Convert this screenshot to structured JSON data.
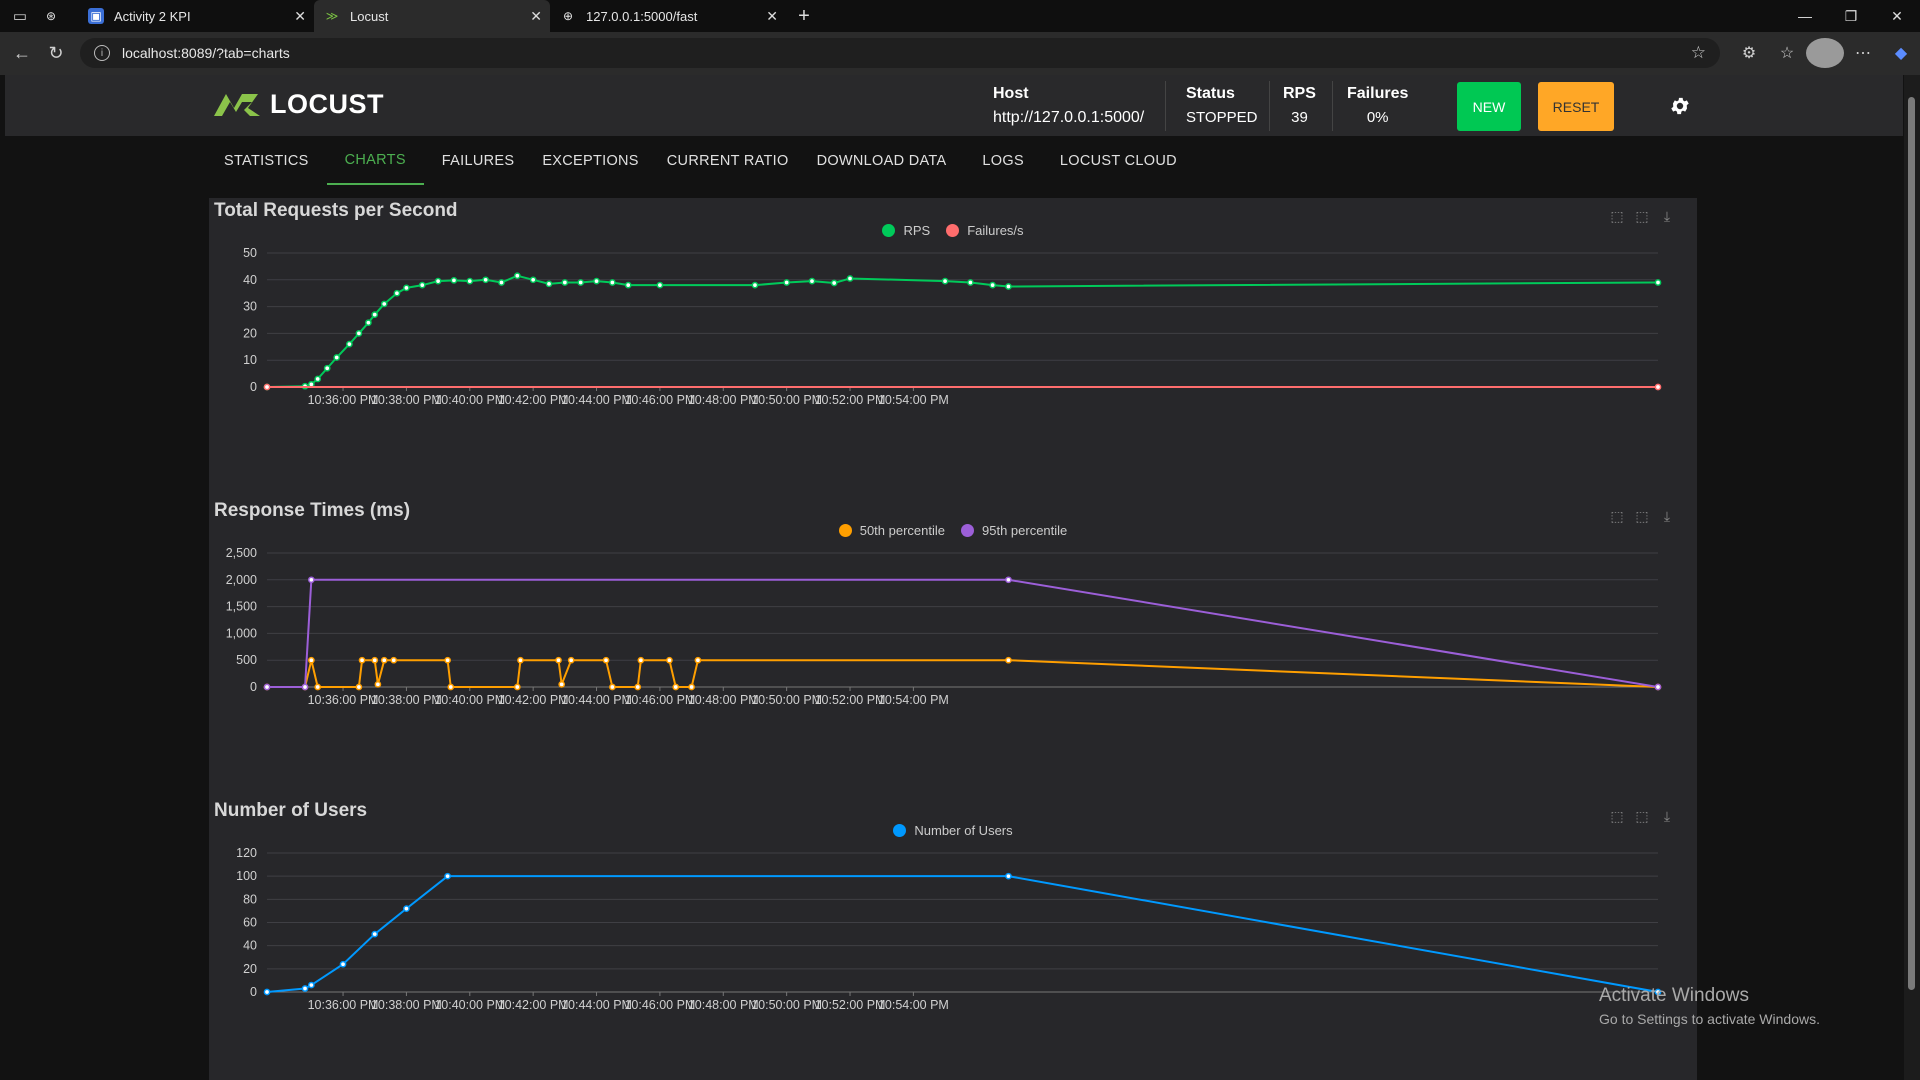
{
  "browser": {
    "tabs": [
      {
        "title": "",
        "icon": "copilot-icon"
      },
      {
        "title": "Activity 2 KPI",
        "icon": "doc-icon"
      },
      {
        "title": "Locust",
        "icon": "locust-icon"
      },
      {
        "title": "127.0.0.1:5000/fast",
        "icon": "globe-icon"
      }
    ],
    "url": "localhost:8089/?tab=charts"
  },
  "header": {
    "logo_text": "LOCUST",
    "host_label": "Host",
    "host_value": "http://127.0.0.1:5000/",
    "status_label": "Status",
    "status_value": "STOPPED",
    "rps_label": "RPS",
    "rps_value": "39",
    "failures_label": "Failures",
    "failures_value": "0%",
    "new_label": "NEW",
    "reset_label": "RESET"
  },
  "nav": {
    "tabs": [
      "STATISTICS",
      "CHARTS",
      "FAILURES",
      "EXCEPTIONS",
      "CURRENT RATIO",
      "DOWNLOAD DATA",
      "LOGS",
      "LOCUST CLOUD"
    ],
    "active": "CHARTS"
  },
  "time_labels": [
    "10:36:00 PM",
    "10:38:00 PM",
    "10:40:00 PM",
    "10:42:00 PM",
    "10:44:00 PM",
    "10:46:00 PM",
    "10:48:00 PM",
    "10:50:00 PM",
    "10:52:00 PM",
    "10:54:00 PM"
  ],
  "colors": {
    "rps": "#00ca5a",
    "failures": "#ff6d6d",
    "p50": "#ff9f00",
    "p95": "#9c5fd8",
    "users": "#0099ff",
    "accent": "#4caf50"
  },
  "chart_data": [
    {
      "type": "line",
      "title": "Total Requests per Second",
      "y_ticks": [
        "0",
        "10",
        "20",
        "30",
        "40",
        "50"
      ],
      "ylim": [
        0,
        50
      ],
      "series": [
        {
          "name": "RPS",
          "values": [
            [
              -2.4,
              0
            ],
            [
              -1.2,
              0.3
            ],
            [
              -1,
              1
            ],
            [
              -0.8,
              3
            ],
            [
              -0.5,
              7
            ],
            [
              -0.2,
              11
            ],
            [
              0.2,
              16
            ],
            [
              0.5,
              20
            ],
            [
              0.8,
              24
            ],
            [
              1,
              27
            ],
            [
              1.3,
              31
            ],
            [
              1.7,
              35
            ],
            [
              2,
              37
            ],
            [
              2.5,
              38
            ],
            [
              3,
              39.5
            ],
            [
              3.5,
              39.8
            ],
            [
              4,
              39.5
            ],
            [
              4.5,
              40
            ],
            [
              5,
              39
            ],
            [
              5.5,
              41.5
            ],
            [
              6,
              40
            ],
            [
              6.5,
              38.5
            ],
            [
              7,
              39
            ],
            [
              7.5,
              39
            ],
            [
              8,
              39.5
            ],
            [
              8.5,
              39
            ],
            [
              9,
              38
            ],
            [
              10,
              38
            ],
            [
              13,
              38
            ],
            [
              14,
              39
            ],
            [
              14.8,
              39.5
            ],
            [
              15.5,
              38.8
            ],
            [
              16,
              40.5
            ],
            [
              19,
              39.5
            ],
            [
              19.8,
              39
            ],
            [
              20.5,
              38
            ],
            [
              21,
              37.5
            ],
            [
              41.5,
              39
            ]
          ]
        },
        {
          "name": "Failures/s",
          "values": [
            [
              -2.4,
              0
            ],
            [
              41.5,
              0
            ]
          ]
        }
      ]
    },
    {
      "type": "line",
      "title": "Response Times (ms)",
      "y_ticks": [
        "0",
        "500",
        "1,000",
        "1,500",
        "2,000",
        "2,500"
      ],
      "ylim": [
        0,
        2500
      ],
      "series": [
        {
          "name": "50th percentile",
          "values": [
            [
              -2.4,
              0
            ],
            [
              -1.2,
              0
            ],
            [
              -1,
              500
            ],
            [
              -0.8,
              0
            ],
            [
              0.5,
              0
            ],
            [
              0.6,
              500
            ],
            [
              1.0,
              500
            ],
            [
              1.1,
              50
            ],
            [
              1.3,
              500
            ],
            [
              1.6,
              500
            ],
            [
              3.3,
              500
            ],
            [
              3.4,
              0
            ],
            [
              5.5,
              0
            ],
            [
              5.6,
              500
            ],
            [
              6.8,
              500
            ],
            [
              6.9,
              50
            ],
            [
              7.2,
              500
            ],
            [
              8.3,
              500
            ],
            [
              8.5,
              0
            ],
            [
              9.3,
              0
            ],
            [
              9.4,
              500
            ],
            [
              10.3,
              500
            ],
            [
              10.5,
              0
            ],
            [
              11,
              0
            ],
            [
              11.2,
              500
            ],
            [
              21,
              500
            ],
            [
              41.5,
              0
            ]
          ]
        },
        {
          "name": "95th percentile",
          "values": [
            [
              -2.4,
              0
            ],
            [
              -1.2,
              0
            ],
            [
              -1,
              2000
            ],
            [
              21,
              2000
            ],
            [
              41.5,
              0
            ]
          ]
        }
      ]
    },
    {
      "type": "line",
      "title": "Number of Users",
      "y_ticks": [
        "0",
        "20",
        "40",
        "60",
        "80",
        "100",
        "120"
      ],
      "ylim": [
        0,
        120
      ],
      "series": [
        {
          "name": "Number of Users",
          "values": [
            [
              -2.4,
              0
            ],
            [
              -1.2,
              3
            ],
            [
              -1,
              6
            ],
            [
              0,
              24
            ],
            [
              1,
              50
            ],
            [
              2,
              72
            ],
            [
              3.3,
              100
            ],
            [
              21,
              100
            ],
            [
              41.5,
              0
            ]
          ]
        }
      ]
    }
  ],
  "watermark": {
    "line1": "Activate Windows",
    "line2": "Go to Settings to activate Windows."
  }
}
